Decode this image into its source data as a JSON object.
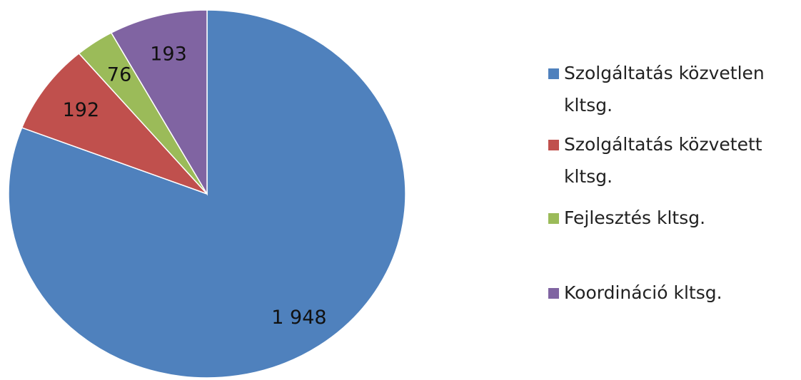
{
  "chart_data": {
    "type": "pie",
    "categories": [
      "Szolgáltatás közvetlen kltsg.",
      "Szolgáltatás közvetett kltsg.",
      "Fejlesztés kltsg.",
      "Koordináció kltsg."
    ],
    "values": [
      1948,
      192,
      76,
      193
    ],
    "value_labels": [
      "1 948",
      "192",
      "76",
      "193"
    ],
    "colors": [
      "#4f81bd",
      "#c0504d",
      "#9bbb59",
      "#8064a2"
    ],
    "legend": "right"
  }
}
